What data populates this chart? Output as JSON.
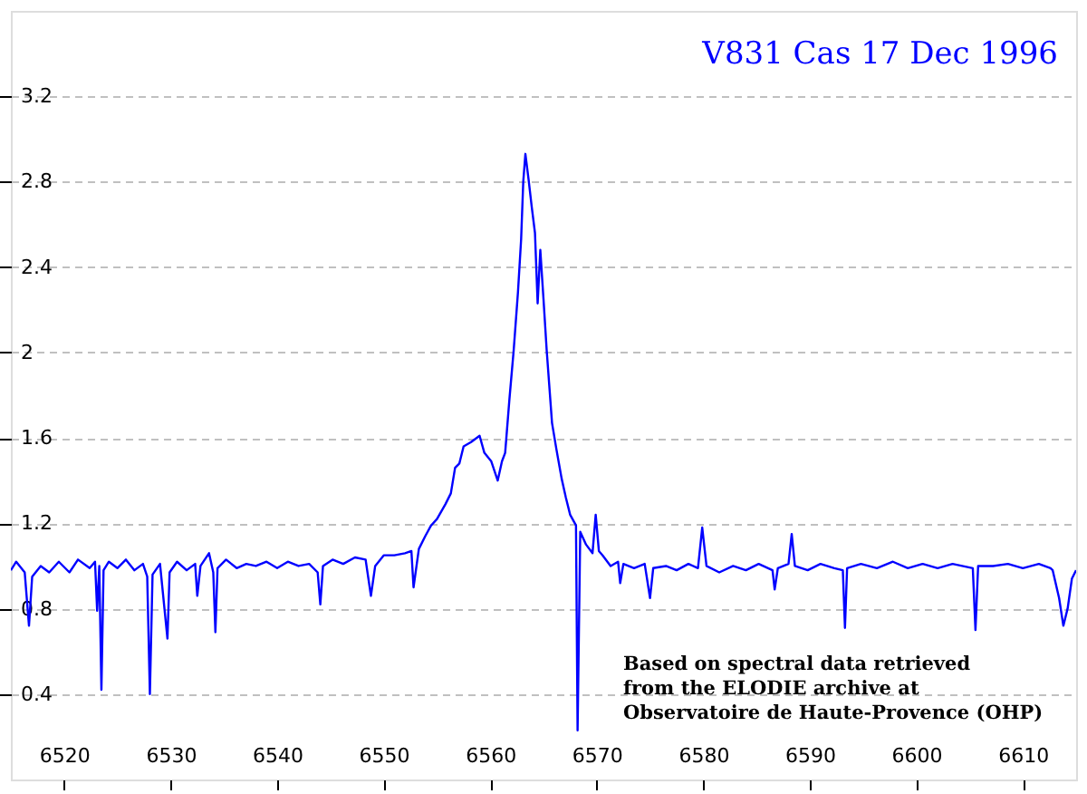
{
  "chart_data": {
    "type": "line",
    "title": "V831 Cas 17 Dec 1996",
    "annotations": [
      "Based on spectral data retrieved",
      "from the ELODIE archive at",
      "Observatoire de Haute-Provence (OHP)"
    ],
    "xlim": [
      6515,
      6615
    ],
    "xticks": [
      6520,
      6530,
      6540,
      6550,
      6560,
      6570,
      6580,
      6590,
      6600,
      6610
    ],
    "ylim": [
      0,
      3.6
    ],
    "yticks": [
      0.4,
      0.8,
      1.2,
      1.6,
      2,
      2.4,
      2.8,
      3.2
    ],
    "grid": "y",
    "marker": "none",
    "line_style": "solid",
    "series": [
      {
        "color": "#0000ff",
        "x": [
          6515.0,
          6515.5,
          6516.3,
          6516.7,
          6517.0,
          6517.8,
          6518.6,
          6519.5,
          6520.5,
          6521.3,
          6522.4,
          6522.9,
          6523.1,
          6523.3,
          6523.5,
          6523.7,
          6524.2,
          6525.0,
          6525.8,
          6526.6,
          6527.4,
          6527.8,
          6528.05,
          6528.3,
          6529.0,
          6529.7,
          6529.9,
          6530.6,
          6531.5,
          6532.3,
          6532.5,
          6532.8,
          6533.6,
          6534.0,
          6534.2,
          6534.4,
          6535.2,
          6536.2,
          6537.1,
          6538.0,
          6539.0,
          6540.0,
          6541.0,
          6542.0,
          6543.0,
          6543.8,
          6544.05,
          6544.3,
          6545.2,
          6546.2,
          6547.3,
          6548.3,
          6548.8,
          6549.2,
          6550.0,
          6551.0,
          6552.0,
          6552.6,
          6552.8,
          6553.3,
          6553.9,
          6554.45,
          6555.0,
          6555.8,
          6556.3,
          6556.7,
          6557.1,
          6557.5,
          6558.2,
          6559.0,
          6559.45,
          6560.1,
          6560.7,
          6561.1,
          6561.4,
          6561.8,
          6562.2,
          6562.6,
          6562.9,
          6563.1,
          6563.3,
          6563.6,
          6563.9,
          6564.2,
          6564.45,
          6564.7,
          6565.0,
          6565.3,
          6565.8,
          6566.2,
          6566.7,
          6567.1,
          6567.5,
          6568.05,
          6568.2,
          6568.45,
          6569.0,
          6569.6,
          6569.9,
          6570.2,
          6570.55,
          6571.3,
          6572.0,
          6572.2,
          6572.5,
          6573.5,
          6574.5,
          6575.0,
          6575.3,
          6576.5,
          6577.5,
          6578.6,
          6579.5,
          6579.9,
          6580.3,
          6581.5,
          6582.8,
          6584.0,
          6585.2,
          6586.5,
          6586.7,
          6587.0,
          6588.0,
          6588.3,
          6588.6,
          6589.8,
          6591.0,
          6592.3,
          6593.1,
          6593.3,
          6593.5,
          6594.8,
          6596.3,
          6597.8,
          6599.2,
          6600.6,
          6602.0,
          6603.4,
          6605.3,
          6605.55,
          6605.8,
          6607.2,
          6608.6,
          6610.0,
          6611.5,
          6612.6,
          6612.8,
          6613.4,
          6613.8,
          6614.2,
          6614.6,
          6615.0
        ],
        "values": [
          0.98,
          1.02,
          0.97,
          0.72,
          0.95,
          1.0,
          0.97,
          1.02,
          0.97,
          1.03,
          0.99,
          1.02,
          0.79,
          1.0,
          0.42,
          0.98,
          1.02,
          0.99,
          1.03,
          0.98,
          1.01,
          0.95,
          0.4,
          0.96,
          1.01,
          0.66,
          0.97,
          1.02,
          0.98,
          1.01,
          0.86,
          1.0,
          1.06,
          0.97,
          0.69,
          0.99,
          1.03,
          0.99,
          1.01,
          1.0,
          1.02,
          0.99,
          1.02,
          1.0,
          1.01,
          0.97,
          0.82,
          1.0,
          1.03,
          1.01,
          1.04,
          1.03,
          0.86,
          1.0,
          1.05,
          1.05,
          1.06,
          1.07,
          0.9,
          1.08,
          1.14,
          1.19,
          1.22,
          1.29,
          1.34,
          1.46,
          1.48,
          1.56,
          1.58,
          1.61,
          1.53,
          1.49,
          1.4,
          1.49,
          1.53,
          1.78,
          2.01,
          2.28,
          2.53,
          2.8,
          2.93,
          2.81,
          2.68,
          2.56,
          2.23,
          2.48,
          2.25,
          2.01,
          1.67,
          1.55,
          1.41,
          1.32,
          1.24,
          1.19,
          0.23,
          1.16,
          1.1,
          1.06,
          1.24,
          1.07,
          1.05,
          1.0,
          1.02,
          0.92,
          1.01,
          0.99,
          1.01,
          0.85,
          0.99,
          1.0,
          0.98,
          1.01,
          0.99,
          1.18,
          1.0,
          0.97,
          1.0,
          0.98,
          1.01,
          0.98,
          0.89,
          0.99,
          1.01,
          1.15,
          1.0,
          0.98,
          1.01,
          0.99,
          0.98,
          0.71,
          0.99,
          1.01,
          0.99,
          1.02,
          0.99,
          1.01,
          0.99,
          1.01,
          0.99,
          0.7,
          1.0,
          1.0,
          1.01,
          0.99,
          1.01,
          0.99,
          0.98,
          0.85,
          0.72,
          0.8,
          0.94,
          0.98
        ]
      }
    ]
  }
}
